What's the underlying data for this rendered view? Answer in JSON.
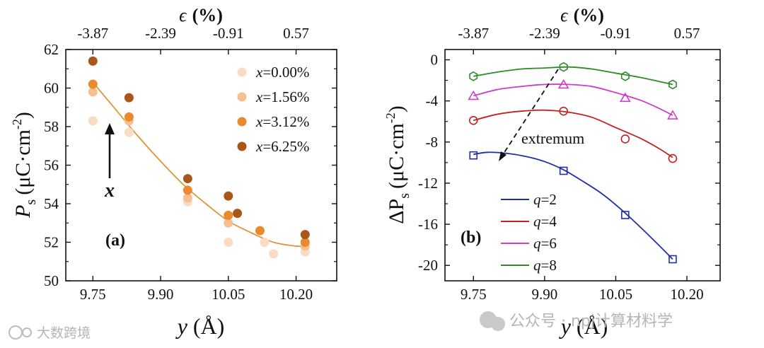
{
  "chart_data": [
    {
      "type": "scatter",
      "panel_label": "(a)",
      "ylabel_main": "P",
      "ylabel_sub": "s",
      "ylabel_units": "(μC·cm",
      "ylabel_exp": "-2",
      "ylabel_close": ")",
      "xlabel_var": "y",
      "xlabel_units": "(Å)",
      "top_label_var": "ϵ",
      "top_label_units": "(%)",
      "xlim": [
        9.69,
        10.29
      ],
      "ylim": [
        50,
        62
      ],
      "xticks": [
        "9.75",
        "9.90",
        "10.05",
        "10.20"
      ],
      "yticks": [
        "50",
        "52",
        "54",
        "56",
        "58",
        "60",
        "62"
      ],
      "top_tick_values": [
        9.75,
        9.9,
        10.05,
        10.2
      ],
      "top_ticks": [
        "-3.87",
        "-2.39",
        "-0.91",
        "0.57"
      ],
      "legend_position": "top-right",
      "annotation_arrow_label": "x",
      "series": [
        {
          "label_var": "x",
          "label_val": "=0.00%",
          "color": "#f9dcc2",
          "x": [
            9.75,
            9.83,
            9.96,
            10.05,
            10.13,
            10.15,
            10.22
          ],
          "y": [
            58.3,
            57.7,
            54.1,
            52.0,
            52.0,
            51.4,
            51.5
          ]
        },
        {
          "label_var": "x",
          "label_val": "=1.56%",
          "color": "#f5bf91",
          "x": [
            9.75,
            9.83,
            9.96,
            10.05,
            10.22
          ],
          "y": [
            59.8,
            58.3,
            54.3,
            53.0,
            51.8
          ]
        },
        {
          "label_var": "x",
          "label_val": "=3.12%",
          "color": "#ea8a2c",
          "x": [
            9.75,
            9.83,
            9.96,
            10.05,
            10.12,
            10.22
          ],
          "y": [
            60.2,
            58.5,
            54.7,
            53.4,
            52.6,
            52.0
          ]
        },
        {
          "label_var": "x",
          "label_val": "=6.25%",
          "color": "#a9561b",
          "x": [
            9.75,
            9.83,
            9.96,
            10.05,
            10.07,
            10.22
          ],
          "y": [
            61.4,
            59.5,
            55.3,
            54.4,
            53.5,
            52.4
          ]
        }
      ],
      "fit_curve": {
        "color": "#df9539",
        "x": [
          9.75,
          9.8,
          9.85,
          9.9,
          9.95,
          10.0,
          10.05,
          10.1,
          10.15,
          10.2,
          10.22
        ],
        "y": [
          60.3,
          58.9,
          57.5,
          56.2,
          55.0,
          54.0,
          53.1,
          52.5,
          52.0,
          51.8,
          51.8
        ]
      }
    },
    {
      "type": "line",
      "panel_label": "(b)",
      "ylabel_main": "ΔP",
      "ylabel_sub": "s",
      "ylabel_units": "(μC·cm",
      "ylabel_exp": "-2",
      "ylabel_close": ")",
      "xlabel_var": "y",
      "xlabel_units": "(Å)",
      "top_label_var": "ϵ",
      "top_label_units": "(%)",
      "xlim": [
        9.69,
        10.27
      ],
      "ylim": [
        -21.5,
        1.0
      ],
      "xticks": [
        "9.75",
        "9.90",
        "10.05",
        "10.20"
      ],
      "yticks": [
        "0",
        "-4",
        "-8",
        "-12",
        "-16",
        "-20"
      ],
      "top_tick_values": [
        9.75,
        9.9,
        10.05,
        10.2
      ],
      "top_ticks": [
        "-3.87",
        "-2.39",
        "-0.91",
        "0.57"
      ],
      "legend_position": "bottom-left",
      "annotation": "extremum",
      "series": [
        {
          "label_var": "q",
          "label_val": "=2",
          "color": "#1f2fa8",
          "marker": "square",
          "x": [
            9.75,
            9.94,
            10.07,
            10.17
          ],
          "y": [
            -9.3,
            -10.8,
            -15.1,
            -19.4
          ],
          "fit": [
            [
              9.75,
              -9.2
            ],
            [
              9.78,
              -9.0
            ],
            [
              9.82,
              -9.1
            ],
            [
              9.86,
              -9.4
            ],
            [
              9.9,
              -9.9
            ],
            [
              9.94,
              -10.7
            ],
            [
              9.98,
              -11.8
            ],
            [
              10.02,
              -13.0
            ],
            [
              10.06,
              -14.5
            ],
            [
              10.1,
              -16.2
            ],
            [
              10.14,
              -18.0
            ],
            [
              10.17,
              -19.4
            ]
          ]
        },
        {
          "label_var": "q",
          "label_val": "=4",
          "color": "#c0221f",
          "marker": "circle",
          "x": [
            9.75,
            9.94,
            10.07,
            10.17
          ],
          "y": [
            -5.9,
            -5.0,
            -7.7,
            -9.6
          ],
          "fit": [
            [
              9.75,
              -5.9
            ],
            [
              9.8,
              -5.3
            ],
            [
              9.85,
              -5.0
            ],
            [
              9.9,
              -4.9
            ],
            [
              9.95,
              -5.1
            ],
            [
              10.0,
              -5.6
            ],
            [
              10.05,
              -6.6
            ],
            [
              10.1,
              -7.6
            ],
            [
              10.14,
              -8.6
            ],
            [
              10.17,
              -9.5
            ]
          ]
        },
        {
          "label_var": "q",
          "label_val": "=6",
          "color": "#cc3ec8",
          "marker": "triangle",
          "x": [
            9.75,
            9.94,
            10.07,
            10.17
          ],
          "y": [
            -3.5,
            -2.4,
            -3.7,
            -5.4
          ],
          "fit": [
            [
              9.75,
              -3.5
            ],
            [
              9.8,
              -2.9
            ],
            [
              9.85,
              -2.6
            ],
            [
              9.9,
              -2.4
            ],
            [
              9.95,
              -2.4
            ],
            [
              10.0,
              -2.6
            ],
            [
              10.05,
              -3.2
            ],
            [
              10.1,
              -3.9
            ],
            [
              10.14,
              -4.7
            ],
            [
              10.17,
              -5.4
            ]
          ]
        },
        {
          "label_var": "q",
          "label_val": "=8",
          "color": "#2f8a26",
          "marker": "hexagon",
          "x": [
            9.75,
            9.94,
            10.07,
            10.17
          ],
          "y": [
            -1.6,
            -0.7,
            -1.6,
            -2.4
          ],
          "fit": [
            [
              9.75,
              -1.6
            ],
            [
              9.8,
              -1.2
            ],
            [
              9.85,
              -0.9
            ],
            [
              9.9,
              -0.8
            ],
            [
              9.95,
              -0.7
            ],
            [
              10.0,
              -0.9
            ],
            [
              10.05,
              -1.3
            ],
            [
              10.1,
              -1.7
            ],
            [
              10.14,
              -2.1
            ],
            [
              10.17,
              -2.4
            ]
          ]
        }
      ]
    }
  ],
  "watermark": {
    "left_text": "大数跨境",
    "right_text": "公众号 · npj计算材料学"
  }
}
